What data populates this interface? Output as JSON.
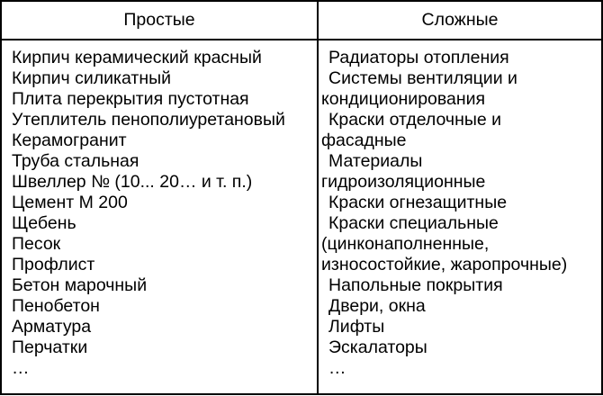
{
  "table": {
    "border_color": "#000000",
    "background": "#ffffff",
    "text_color": "#000000",
    "columns": [
      {
        "id": "simple",
        "header": "Простые",
        "items": [
          {
            "lines": [
              "Кирпич керамический красный"
            ]
          },
          {
            "lines": [
              "Кирпич силикатный"
            ]
          },
          {
            "lines": [
              "Плита перекрытия пустотная"
            ]
          },
          {
            "lines": [
              "Утеплитель пенополиуретановый"
            ]
          },
          {
            "lines": [
              "Керамогранит"
            ]
          },
          {
            "lines": [
              "Труба стальная"
            ]
          },
          {
            "lines": [
              "Швеллер № (10... 20… и т. п.)"
            ]
          },
          {
            "lines": [
              "Цемент М 200"
            ]
          },
          {
            "lines": [
              "Щебень"
            ]
          },
          {
            "lines": [
              "Песок"
            ]
          },
          {
            "lines": [
              "Профлист"
            ]
          },
          {
            "lines": [
              "Бетон марочный"
            ]
          },
          {
            "lines": [
              "Пенобетон"
            ]
          },
          {
            "lines": [
              "Арматура"
            ]
          },
          {
            "lines": [
              "Перчатки"
            ]
          },
          {
            "lines": [
              "…"
            ]
          }
        ]
      },
      {
        "id": "complex",
        "header": "Сложные",
        "items": [
          {
            "lines": [
              "Радиаторы отопления"
            ]
          },
          {
            "lines": [
              "Системы вентиляции и",
              "кондиционирования"
            ]
          },
          {
            "lines": [
              "Краски отделочные и",
              "фасадные"
            ]
          },
          {
            "lines": [
              "Материалы",
              "гидроизоляционные"
            ]
          },
          {
            "lines": [
              "Краски огнезащитные"
            ]
          },
          {
            "lines": [
              "Краски специальные",
              "(цинконаполненные,",
              "износостойкие, жаропрочные)"
            ]
          },
          {
            "lines": [
              "Напольные покрытия"
            ]
          },
          {
            "lines": [
              "Двери, окна"
            ]
          },
          {
            "lines": [
              "Лифты"
            ]
          },
          {
            "lines": [
              "Эскалаторы"
            ]
          },
          {
            "lines": [
              "…"
            ]
          }
        ]
      }
    ]
  }
}
